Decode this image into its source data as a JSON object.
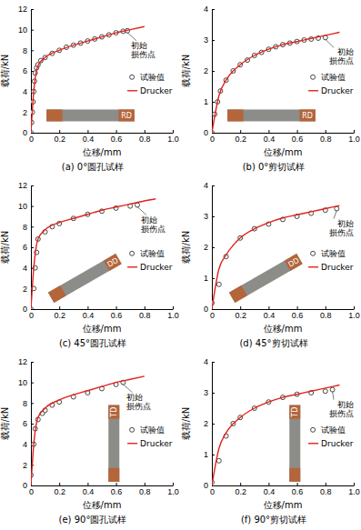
{
  "chart_data": [
    {
      "type": "line",
      "title": "(a) 0°圆孔试样",
      "x_label": "位移/mm",
      "y_label": "载荷/kN",
      "xlim": [
        0,
        1
      ],
      "xticks": [
        0,
        0.2,
        0.4,
        0.6,
        0.8,
        {
          "value": 1,
          "label": "1.0"
        }
      ],
      "ylim": [
        0,
        12
      ],
      "yticks": [
        0,
        2,
        4,
        6,
        8,
        10,
        12
      ],
      "legend": "right",
      "series": [
        {
          "name": "试验值",
          "type": "scatter",
          "marker": "circle",
          "color": "#333333",
          "x": [
            0,
            0.005,
            0.01,
            0.015,
            0.02,
            0.025,
            0.03,
            0.04,
            0.05,
            0.07,
            0.1,
            0.15,
            0.2,
            0.25,
            0.3,
            0.35,
            0.4,
            0.45,
            0.5,
            0.55,
            0.6,
            0.65,
            0.68
          ],
          "values": [
            0,
            1,
            2,
            3,
            4,
            5,
            5.8,
            6.3,
            6.6,
            7.0,
            7.3,
            7.7,
            8.0,
            8.3,
            8.5,
            8.7,
            8.9,
            9.1,
            9.3,
            9.5,
            9.7,
            9.85,
            9.9
          ]
        },
        {
          "name": "Drucker",
          "type": "line",
          "line_style": "solid",
          "color": "#e0231c",
          "x": [
            0,
            0.02,
            0.05,
            0.1,
            0.2,
            0.3,
            0.4,
            0.5,
            0.6,
            0.7,
            0.8
          ],
          "values": [
            0,
            4,
            6.5,
            7.3,
            8.0,
            8.5,
            8.9,
            9.3,
            9.7,
            10.0,
            10.3
          ]
        }
      ],
      "annotations": [
        {
          "text": "初始损伤点",
          "x": 0.68,
          "y": 9.9
        }
      ],
      "inset": {
        "label": "RD"
      }
    },
    {
      "type": "line",
      "title": "(b) 0°剪切试样",
      "x_label": "位移/mm",
      "y_label": "载荷/kN",
      "xlim": [
        0,
        1
      ],
      "xticks": [
        0,
        0.2,
        0.4,
        0.6,
        0.8,
        {
          "value": 1,
          "label": "1.0"
        }
      ],
      "ylim": [
        0,
        4
      ],
      "yticks": [
        0,
        1,
        2,
        3,
        4
      ],
      "legend": "right",
      "series": [
        {
          "name": "试验值",
          "type": "scatter",
          "marker": "circle",
          "color": "#333333",
          "x": [
            0,
            0.02,
            0.04,
            0.06,
            0.1,
            0.15,
            0.2,
            0.25,
            0.3,
            0.35,
            0.4,
            0.45,
            0.5,
            0.55,
            0.6,
            0.65,
            0.7,
            0.75,
            0.8
          ],
          "values": [
            0,
            0.6,
            1.0,
            1.35,
            1.7,
            2.0,
            2.2,
            2.35,
            2.5,
            2.6,
            2.7,
            2.78,
            2.85,
            2.9,
            2.95,
            3.0,
            3.03,
            3.06,
            3.08
          ]
        },
        {
          "name": "Drucker",
          "type": "line",
          "line_style": "solid",
          "color": "#e0231c",
          "x": [
            0,
            0.05,
            0.1,
            0.2,
            0.3,
            0.4,
            0.5,
            0.6,
            0.7,
            0.8,
            0.9
          ],
          "values": [
            0,
            1.2,
            1.7,
            2.2,
            2.5,
            2.7,
            2.85,
            2.95,
            3.05,
            3.15,
            3.25
          ]
        }
      ],
      "annotations": [
        {
          "text": "初始损伤点",
          "x": 0.8,
          "y": 3.08
        }
      ],
      "inset": {
        "label": "RD"
      }
    },
    {
      "type": "line",
      "title": "(c) 45°圆孔试样",
      "x_label": "位移/mm",
      "y_label": "载荷/kN",
      "xlim": [
        0,
        1
      ],
      "xticks": [
        0,
        0.2,
        0.4,
        0.6,
        0.8,
        {
          "value": 1,
          "label": "1.0"
        }
      ],
      "ylim": [
        0,
        12
      ],
      "yticks": [
        0,
        2,
        4,
        6,
        8,
        10,
        12
      ],
      "legend": "right",
      "series": [
        {
          "name": "试验值",
          "type": "scatter",
          "marker": "circle",
          "color": "#333333",
          "x": [
            0,
            0.02,
            0.03,
            0.04,
            0.05,
            0.1,
            0.15,
            0.2,
            0.3,
            0.4,
            0.5,
            0.6,
            0.7,
            0.75
          ],
          "values": [
            0,
            2,
            4,
            5.5,
            6.8,
            7.5,
            8.0,
            8.3,
            8.8,
            9.2,
            9.5,
            9.8,
            10.0,
            10.1
          ]
        },
        {
          "name": "Drucker",
          "type": "line",
          "line_style": "solid",
          "color": "#e0231c",
          "x": [
            0,
            0.02,
            0.05,
            0.1,
            0.2,
            0.3,
            0.4,
            0.5,
            0.6,
            0.7,
            0.8,
            0.88
          ],
          "values": [
            0,
            4,
            6.8,
            7.7,
            8.4,
            8.8,
            9.2,
            9.6,
            9.9,
            10.2,
            10.5,
            10.7
          ]
        }
      ],
      "annotations": [
        {
          "text": "初始损伤点",
          "x": 0.75,
          "y": 10.1
        }
      ],
      "inset": {
        "label": "DD"
      }
    },
    {
      "type": "line",
      "title": "(d) 45°剪切试样",
      "x_label": "位移/mm",
      "y_label": "载荷/kN",
      "xlim": [
        0,
        1
      ],
      "xticks": [
        0,
        0.2,
        0.4,
        0.6,
        0.8,
        {
          "value": 1,
          "label": "1.0"
        }
      ],
      "ylim": [
        0,
        4
      ],
      "yticks": [
        0,
        1,
        2,
        3,
        4
      ],
      "legend": "right",
      "series": [
        {
          "name": "试验值",
          "type": "scatter",
          "marker": "circle",
          "color": "#333333",
          "x": [
            0,
            0.05,
            0.1,
            0.2,
            0.3,
            0.4,
            0.5,
            0.6,
            0.7,
            0.8,
            0.88
          ],
          "values": [
            0.2,
            0.8,
            1.7,
            2.3,
            2.6,
            2.75,
            2.9,
            3.0,
            3.1,
            3.2,
            3.25
          ]
        },
        {
          "name": "Drucker",
          "type": "line",
          "line_style": "solid",
          "color": "#e0231c",
          "x": [
            0,
            0.05,
            0.1,
            0.2,
            0.3,
            0.4,
            0.5,
            0.6,
            0.7,
            0.8,
            0.9
          ],
          "values": [
            0,
            1.3,
            1.75,
            2.3,
            2.6,
            2.8,
            2.95,
            3.05,
            3.15,
            3.25,
            3.35
          ]
        }
      ],
      "annotations": [
        {
          "text": "初始损伤点",
          "x": 0.88,
          "y": 3.25
        }
      ],
      "inset": {
        "label": "DD"
      }
    },
    {
      "type": "line",
      "title": "(e) 90°圆孔试样",
      "x_label": "位移/mm",
      "y_label": "载荷/kN",
      "xlim": [
        0,
        1
      ],
      "xticks": [
        0,
        0.2,
        0.4,
        0.6,
        0.8,
        {
          "value": 1,
          "label": "1.0"
        }
      ],
      "ylim": [
        0,
        12
      ],
      "yticks": [
        0,
        2,
        4,
        6,
        8,
        10,
        12
      ],
      "legend": "right",
      "series": [
        {
          "name": "试验值",
          "type": "scatter",
          "marker": "circle",
          "color": "#333333",
          "x": [
            0,
            0.02,
            0.03,
            0.05,
            0.08,
            0.1,
            0.15,
            0.2,
            0.3,
            0.4,
            0.5,
            0.6,
            0.65
          ],
          "values": [
            1,
            4,
            5.5,
            6.4,
            7.0,
            7.3,
            7.8,
            8.1,
            8.6,
            9.0,
            9.4,
            9.8,
            10.0
          ]
        },
        {
          "name": "Drucker",
          "type": "line",
          "line_style": "solid",
          "color": "#e0231c",
          "x": [
            0,
            0.02,
            0.05,
            0.1,
            0.2,
            0.3,
            0.4,
            0.5,
            0.6,
            0.7,
            0.8
          ],
          "values": [
            0,
            4,
            6.6,
            7.5,
            8.3,
            8.8,
            9.2,
            9.6,
            10.0,
            10.3,
            10.6
          ]
        }
      ],
      "annotations": [
        {
          "text": "初始损伤点",
          "x": 0.65,
          "y": 10.0
        }
      ],
      "inset": {
        "label": "TD"
      }
    },
    {
      "type": "line",
      "title": "(f) 90°剪切试样",
      "x_label": "位移/mm",
      "y_label": "载荷/kN",
      "xlim": [
        0,
        1
      ],
      "xticks": [
        0,
        0.2,
        0.4,
        0.6,
        0.8,
        {
          "value": 1,
          "label": "1.0"
        }
      ],
      "ylim": [
        0,
        4
      ],
      "yticks": [
        0,
        1,
        2,
        3,
        4
      ],
      "legend": "right",
      "series": [
        {
          "name": "试验值",
          "type": "scatter",
          "marker": "circle",
          "color": "#333333",
          "x": [
            0,
            0.05,
            0.1,
            0.15,
            0.2,
            0.3,
            0.4,
            0.5,
            0.6,
            0.7,
            0.8,
            0.85
          ],
          "values": [
            0.1,
            0.8,
            1.6,
            2.0,
            2.2,
            2.5,
            2.7,
            2.85,
            2.95,
            3.0,
            3.05,
            3.1
          ]
        },
        {
          "name": "Drucker",
          "type": "line",
          "line_style": "solid",
          "color": "#e0231c",
          "x": [
            0,
            0.05,
            0.1,
            0.2,
            0.3,
            0.4,
            0.5,
            0.6,
            0.7,
            0.8,
            0.9
          ],
          "values": [
            0,
            1.2,
            1.7,
            2.2,
            2.5,
            2.7,
            2.85,
            2.95,
            3.05,
            3.15,
            3.25
          ]
        }
      ],
      "annotations": [
        {
          "text": "初始损伤点",
          "x": 0.85,
          "y": 3.1
        }
      ],
      "inset": {
        "label": "TD"
      }
    }
  ]
}
